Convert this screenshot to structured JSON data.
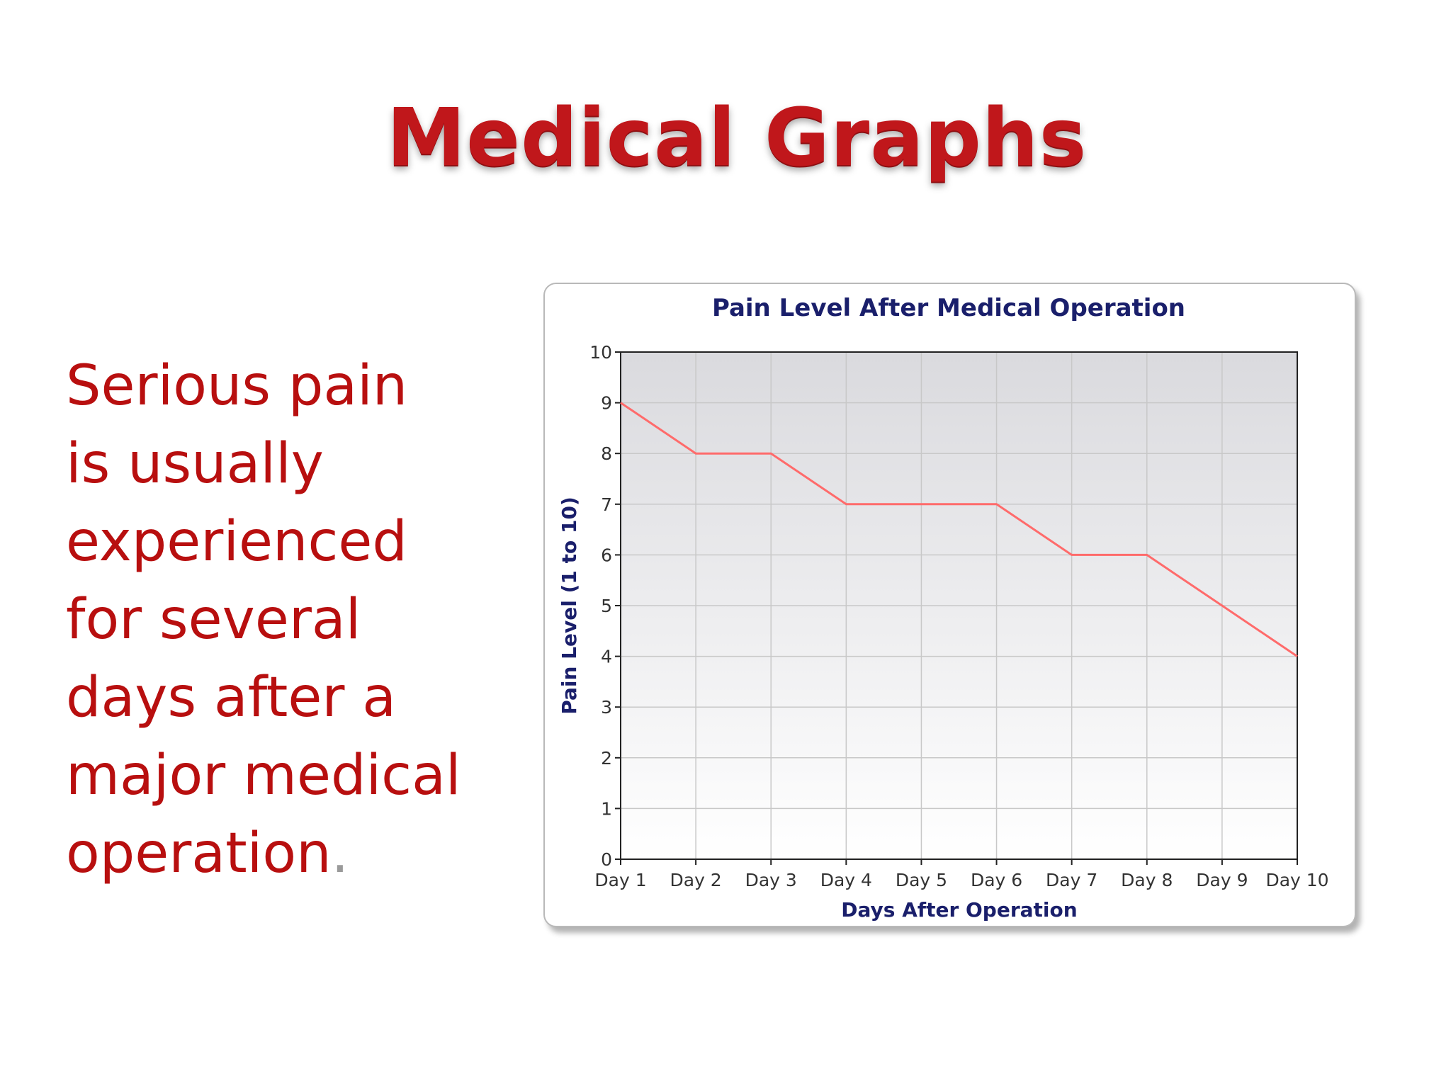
{
  "slide": {
    "title": "Medical Graphs",
    "body_lines": [
      "Serious pain",
      "is usually",
      "experienced",
      "for several",
      "days after a",
      "major medical",
      "operation"
    ],
    "body_end_punct": "."
  },
  "colors": {
    "title": "#c0171b",
    "body_text": "#b80f0f",
    "chart_text": "#1a1f6b",
    "series_line": "#ff6b6b"
  },
  "chart_data": {
    "type": "line",
    "title": "Pain Level After Medical Operation",
    "xlabel": "Days After Operation",
    "ylabel": "Pain Level (1 to 10)",
    "categories": [
      "Day 1",
      "Day 2",
      "Day 3",
      "Day 4",
      "Day 5",
      "Day 6",
      "Day 7",
      "Day 8",
      "Day 9",
      "Day 10"
    ],
    "series": [
      {
        "values": [
          9,
          8,
          8,
          7,
          7,
          7,
          6,
          6,
          5,
          4
        ]
      }
    ],
    "ylim": [
      0,
      10
    ],
    "yticks": [
      0,
      1,
      2,
      3,
      4,
      5,
      6,
      7,
      8,
      9,
      10
    ],
    "grid": true,
    "legend": "none"
  }
}
